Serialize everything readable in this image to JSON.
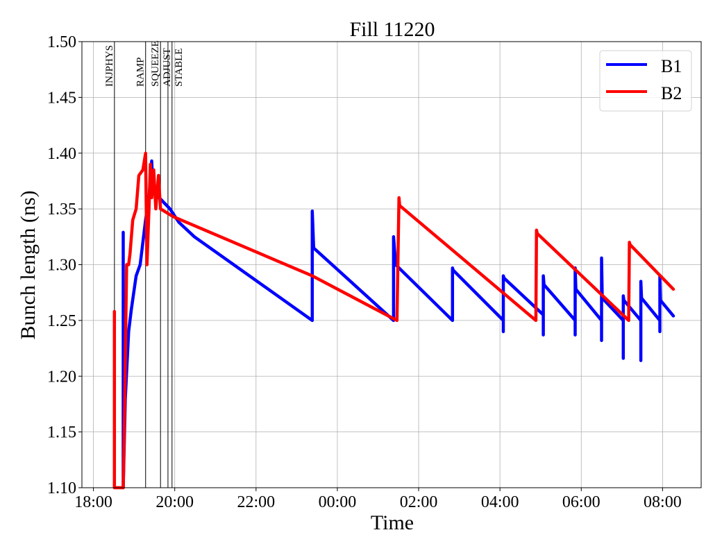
{
  "chart_data": {
    "type": "line",
    "title": "Fill 11220",
    "xlabel": "Time",
    "ylabel": "Bunch length (ns)",
    "xlim": [
      "17:43",
      "08:57"
    ],
    "ylim": [
      1.1,
      1.5
    ],
    "grid": true,
    "legend_position": "top-right",
    "x_ticks": [
      "18:00",
      "20:00",
      "22:00",
      "00:00",
      "02:00",
      "04:00",
      "06:00",
      "08:00"
    ],
    "y_ticks": [
      "1.10",
      "1.15",
      "1.20",
      "1.25",
      "1.30",
      "1.35",
      "1.40",
      "1.45",
      "1.50"
    ],
    "mode_markers": [
      {
        "label": "INJPHYS",
        "time": "18:31"
      },
      {
        "label": "RAMP",
        "time": "19:17"
      },
      {
        "label": "SQUEEZE",
        "time": "19:39"
      },
      {
        "label": "ADJUST",
        "time": "19:50"
      },
      {
        "label": "STABLE",
        "time": "19:56"
      }
    ],
    "series": [
      {
        "name": "B1",
        "color": "#0000ff",
        "points": [
          [
            "18:44",
            1.1
          ],
          [
            "18:44",
            1.329
          ],
          [
            "18:44",
            1.1
          ],
          [
            "18:47",
            1.18
          ],
          [
            "18:52",
            1.24
          ],
          [
            "18:56",
            1.26
          ],
          [
            "19:03",
            1.29
          ],
          [
            "19:09",
            1.3
          ],
          [
            "19:17",
            1.34
          ],
          [
            "19:22",
            1.36
          ],
          [
            "19:26",
            1.393
          ],
          [
            "19:27",
            1.38
          ],
          [
            "19:32",
            1.365
          ],
          [
            "19:37",
            1.36
          ],
          [
            "19:53",
            1.35
          ],
          [
            "20:06",
            1.338
          ],
          [
            "20:29",
            1.325
          ],
          [
            "23:23",
            1.25
          ],
          [
            "23:23",
            1.348
          ],
          [
            "23:25",
            1.315
          ],
          [
            "01:23",
            1.25
          ],
          [
            "01:23",
            1.325
          ],
          [
            "01:26",
            1.3
          ],
          [
            "02:50",
            1.25
          ],
          [
            "02:50",
            1.297
          ],
          [
            "02:51",
            1.295
          ],
          [
            "04:05",
            1.25
          ],
          [
            "04:05",
            1.24
          ],
          [
            "04:05",
            1.29
          ],
          [
            "04:06",
            1.288
          ],
          [
            "05:04",
            1.255
          ],
          [
            "05:04",
            1.237
          ],
          [
            "05:04",
            1.29
          ],
          [
            "05:05",
            1.282
          ],
          [
            "05:51",
            1.25
          ],
          [
            "05:51",
            1.237
          ],
          [
            "05:51",
            1.297
          ],
          [
            "05:52",
            1.278
          ],
          [
            "06:30",
            1.25
          ],
          [
            "06:30",
            1.232
          ],
          [
            "06:30",
            1.306
          ],
          [
            "06:31",
            1.27
          ],
          [
            "07:02",
            1.25
          ],
          [
            "07:02",
            1.216
          ],
          [
            "07:02",
            1.272
          ],
          [
            "07:03",
            1.268
          ],
          [
            "07:28",
            1.25
          ],
          [
            "07:28",
            1.214
          ],
          [
            "07:28",
            1.285
          ],
          [
            "07:29",
            1.27
          ],
          [
            "07:56",
            1.25
          ],
          [
            "07:56",
            1.24
          ],
          [
            "07:56",
            1.29
          ],
          [
            "07:57",
            1.268
          ],
          [
            "08:16",
            1.254
          ]
        ]
      },
      {
        "name": "B2",
        "color": "#ff0000",
        "points": [
          [
            "18:31",
            1.1
          ],
          [
            "18:31",
            1.258
          ],
          [
            "18:31",
            1.1
          ],
          [
            "18:44",
            1.1
          ],
          [
            "18:46",
            1.17
          ],
          [
            "18:49",
            1.3
          ],
          [
            "18:52",
            1.3
          ],
          [
            "18:54",
            1.31
          ],
          [
            "18:58",
            1.34
          ],
          [
            "19:03",
            1.35
          ],
          [
            "19:07",
            1.38
          ],
          [
            "19:13",
            1.385
          ],
          [
            "19:17",
            1.4
          ],
          [
            "19:19",
            1.3
          ],
          [
            "19:22",
            1.35
          ],
          [
            "19:24",
            1.39
          ],
          [
            "19:26",
            1.36
          ],
          [
            "19:29",
            1.385
          ],
          [
            "19:32",
            1.35
          ],
          [
            "19:36",
            1.38
          ],
          [
            "19:39",
            1.35
          ],
          [
            "19:58",
            1.343
          ],
          [
            "23:23",
            1.29
          ],
          [
            "01:28",
            1.25
          ],
          [
            "01:31",
            1.36
          ],
          [
            "01:32",
            1.353
          ],
          [
            "04:53",
            1.25
          ],
          [
            "04:54",
            1.331
          ],
          [
            "04:55",
            1.328
          ],
          [
            "07:10",
            1.25
          ],
          [
            "07:11",
            1.32
          ],
          [
            "07:12",
            1.318
          ],
          [
            "08:16",
            1.278
          ]
        ]
      }
    ]
  }
}
